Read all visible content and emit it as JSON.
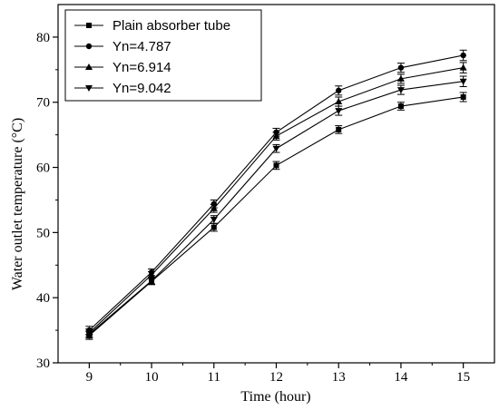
{
  "chart_data": {
    "type": "line",
    "title": "",
    "xlabel": "Time (hour)",
    "ylabel": "Water outlet temperature (°C)",
    "x": [
      9,
      10,
      11,
      12,
      13,
      14,
      15
    ],
    "xlim": [
      8.5,
      15.5
    ],
    "ylim": [
      30,
      85
    ],
    "xticks": [
      9,
      10,
      11,
      12,
      13,
      14,
      15
    ],
    "yticks": [
      30,
      40,
      50,
      60,
      70,
      80
    ],
    "grid": false,
    "legend_position": "top-left",
    "error_bars": true,
    "series": [
      {
        "name": "Plain absorber tube",
        "marker": "square",
        "values": [
          34.2,
          42.5,
          50.8,
          60.3,
          65.8,
          69.4,
          70.8
        ],
        "errors": [
          0.6,
          0.5,
          0.6,
          0.6,
          0.6,
          0.6,
          0.7
        ]
      },
      {
        "name": "Yn=4.787",
        "marker": "circle",
        "values": [
          35.0,
          43.9,
          54.4,
          65.4,
          71.8,
          75.3,
          77.2
        ],
        "errors": [
          0.6,
          0.5,
          0.6,
          0.6,
          0.7,
          0.7,
          0.8
        ]
      },
      {
        "name": "Yn=6.914",
        "marker": "triangle-up",
        "values": [
          34.6,
          43.5,
          53.7,
          64.8,
          70.1,
          73.6,
          75.3
        ],
        "errors": [
          0.6,
          0.5,
          0.6,
          0.6,
          0.7,
          0.7,
          0.8
        ]
      },
      {
        "name": "Yn=9.042",
        "marker": "triangle-down",
        "values": [
          34.4,
          42.6,
          52.0,
          62.9,
          68.7,
          71.9,
          73.2
        ],
        "errors": [
          0.6,
          0.5,
          0.6,
          0.6,
          0.7,
          0.7,
          0.8
        ]
      }
    ]
  }
}
